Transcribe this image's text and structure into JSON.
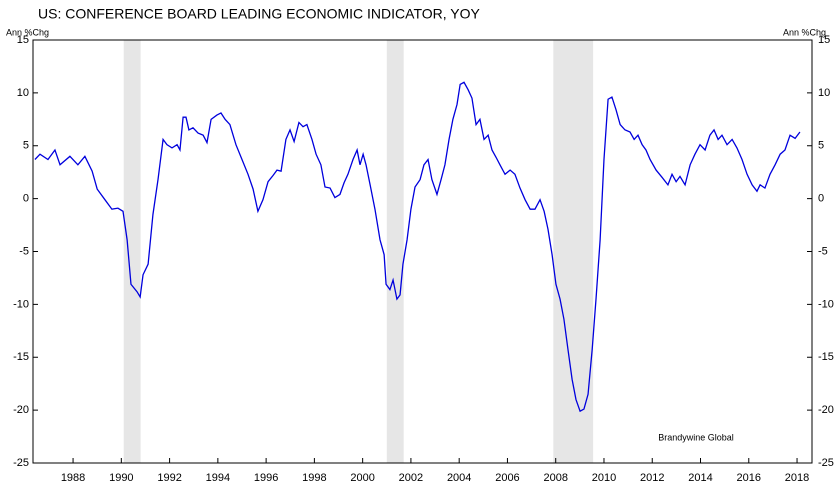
{
  "chart_data": {
    "type": "line",
    "title": "US: CONFERENCE BOARD LEADING ECONOMIC INDICATOR, YOY",
    "y_label": "Ann %Chg",
    "y2_label": "Ann %Chg",
    "annotation": "Brandywine Global",
    "color": "#0000dd",
    "recession_color": "#e6e6e6",
    "recessions": [
      [
        1990.1,
        1990.8
      ],
      [
        2001.0,
        2001.7
      ],
      [
        2007.9,
        2009.55
      ]
    ],
    "xlim": [
      1986.34,
      2018.62
    ],
    "xticks": [
      1988,
      1990,
      1992,
      1994,
      1996,
      1998,
      2000,
      2002,
      2004,
      2006,
      2008,
      2010,
      2012,
      2014,
      2016,
      2018
    ],
    "ylim": [
      -25,
      15
    ],
    "yticks": [
      -25,
      -20,
      -15,
      -10,
      -5,
      0,
      5,
      10,
      15
    ],
    "y2lim": [
      -25,
      15
    ],
    "y2ticks": [
      -25,
      -20,
      -15,
      -10,
      -5,
      0,
      5,
      10,
      15
    ],
    "x": [
      1986.42,
      1986.63,
      1986.96,
      1987.25,
      1987.46,
      1987.87,
      1988.2,
      1988.49,
      1988.79,
      1989.0,
      1989.32,
      1989.61,
      1989.86,
      1990.07,
      1990.24,
      1990.4,
      1990.65,
      1990.78,
      1990.9,
      1991.11,
      1991.31,
      1991.52,
      1991.73,
      1991.89,
      1992.1,
      1992.31,
      1992.43,
      1992.56,
      1992.68,
      1992.8,
      1992.97,
      1993.18,
      1993.39,
      1993.55,
      1993.72,
      1993.96,
      1994.13,
      1994.3,
      1994.5,
      1994.75,
      1995.0,
      1995.25,
      1995.46,
      1995.66,
      1995.87,
      1996.08,
      1996.29,
      1996.45,
      1996.62,
      1996.82,
      1996.99,
      1997.16,
      1997.36,
      1997.53,
      1997.69,
      1997.9,
      1998.07,
      1998.27,
      1998.44,
      1998.65,
      1998.85,
      1999.06,
      1999.23,
      1999.39,
      1999.6,
      1999.77,
      1999.89,
      2000.02,
      2000.14,
      2000.31,
      2000.51,
      2000.72,
      2000.89,
      2000.97,
      2001.13,
      2001.26,
      2001.42,
      2001.55,
      2001.67,
      2001.84,
      2002.0,
      2002.17,
      2002.38,
      2002.54,
      2002.71,
      2002.87,
      2003.08,
      2003.25,
      2003.41,
      2003.58,
      2003.74,
      2003.91,
      2004.04,
      2004.2,
      2004.37,
      2004.53,
      2004.7,
      2004.86,
      2005.03,
      2005.2,
      2005.36,
      2005.53,
      2005.69,
      2005.9,
      2006.11,
      2006.31,
      2006.52,
      2006.73,
      2006.94,
      2007.14,
      2007.35,
      2007.52,
      2007.68,
      2007.85,
      2008.01,
      2008.18,
      2008.34,
      2008.51,
      2008.68,
      2008.84,
      2009.01,
      2009.17,
      2009.34,
      2009.51,
      2009.67,
      2009.84,
      2010.0,
      2010.17,
      2010.33,
      2010.5,
      2010.67,
      2010.87,
      2011.08,
      2011.25,
      2011.41,
      2011.58,
      2011.74,
      2011.91,
      2012.16,
      2012.41,
      2012.65,
      2012.82,
      2012.99,
      2013.15,
      2013.36,
      2013.57,
      2013.77,
      2013.98,
      2014.19,
      2014.39,
      2014.56,
      2014.73,
      2014.89,
      2015.1,
      2015.31,
      2015.51,
      2015.72,
      2015.93,
      2016.14,
      2016.34,
      2016.47,
      2016.67,
      2016.88,
      2017.09,
      2017.3,
      2017.5,
      2017.71,
      2017.92,
      2018.12
    ],
    "values": [
      3.7,
      4.2,
      3.7,
      4.6,
      3.2,
      4.0,
      3.2,
      4.0,
      2.6,
      0.9,
      -0.1,
      -1.0,
      -0.9,
      -1.2,
      -3.9,
      -8.1,
      -8.8,
      -9.3,
      -7.2,
      -6.2,
      -1.5,
      1.8,
      5.6,
      5.1,
      4.8,
      5.1,
      4.6,
      7.7,
      7.7,
      6.5,
      6.7,
      6.2,
      6.0,
      5.3,
      7.5,
      7.9,
      8.1,
      7.5,
      7.0,
      5.1,
      3.7,
      2.3,
      0.9,
      -1.2,
      -0.1,
      1.6,
      2.2,
      2.7,
      2.6,
      5.6,
      6.5,
      5.4,
      7.2,
      6.8,
      7.0,
      5.6,
      4.2,
      3.2,
      1.1,
      1.0,
      0.1,
      0.4,
      1.5,
      2.3,
      3.7,
      4.6,
      3.2,
      4.2,
      3.2,
      1.3,
      -1.0,
      -3.9,
      -5.3,
      -8.1,
      -8.6,
      -7.7,
      -9.5,
      -9.1,
      -6.2,
      -3.9,
      -1.0,
      1.1,
      1.8,
      3.2,
      3.7,
      1.8,
      0.4,
      1.8,
      3.2,
      5.6,
      7.5,
      8.9,
      10.8,
      11.0,
      10.3,
      9.5,
      7.0,
      7.5,
      5.6,
      6.0,
      4.6,
      3.9,
      3.2,
      2.3,
      2.7,
      2.3,
      1.0,
      -0.1,
      -1.0,
      -1.0,
      -0.1,
      -1.2,
      -2.9,
      -5.3,
      -8.1,
      -9.5,
      -11.4,
      -14.3,
      -17.1,
      -19.0,
      -20.1,
      -19.9,
      -18.5,
      -14.3,
      -9.5,
      -3.9,
      3.7,
      9.4,
      9.6,
      8.4,
      7.0,
      6.5,
      6.3,
      5.6,
      6.0,
      5.1,
      4.6,
      3.7,
      2.7,
      2.0,
      1.3,
      2.3,
      1.6,
      2.1,
      1.3,
      3.2,
      4.2,
      5.1,
      4.6,
      6.0,
      6.5,
      5.6,
      6.0,
      5.1,
      5.6,
      4.8,
      3.7,
      2.3,
      1.3,
      0.7,
      1.3,
      1.0,
      2.3,
      3.2,
      4.2,
      4.6,
      6.0,
      5.7,
      6.3
    ]
  }
}
